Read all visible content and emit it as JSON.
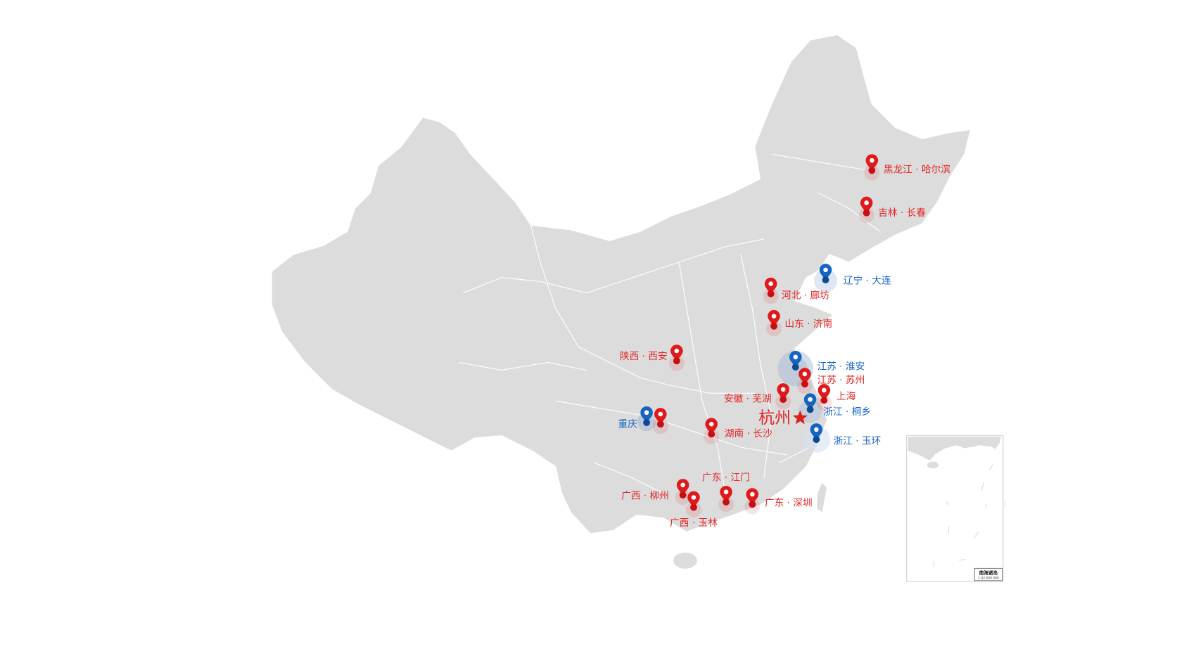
{
  "map": {
    "colors": {
      "land": "#dcdcdc",
      "red_marker": "#e0191b",
      "blue_marker": "#1565c0",
      "red_label": "#e32626",
      "blue_label": "#1a63c6"
    },
    "center": {
      "label": "杭州",
      "icon": "star-icon"
    },
    "red_markers": [
      {
        "label": "黑龙江 · 哈尔滨"
      },
      {
        "label": "吉林 · 长春"
      },
      {
        "label": "河北 · 廊坊"
      },
      {
        "label": "山东 · 济南"
      },
      {
        "label": "陕西 · 西安"
      },
      {
        "label": "江苏 · 苏州"
      },
      {
        "label": "安徽 · 芜湖"
      },
      {
        "label": "上海"
      },
      {
        "label": "湖南 · 长沙"
      },
      {
        "label": "广东 · 江门"
      },
      {
        "label": "广东 · 深圳"
      },
      {
        "label": "广西 · 柳州"
      },
      {
        "label": "广西 · 玉林"
      }
    ],
    "blue_markers": [
      {
        "label": "辽宁 · 大连"
      },
      {
        "label": "江苏 · 淮安"
      },
      {
        "label": "浙江 · 桐乡"
      },
      {
        "label": "浙江 · 玉环"
      },
      {
        "label": "重庆"
      }
    ],
    "inset": {
      "title": "南海诸岛",
      "scale": "1:32 000 000"
    }
  }
}
